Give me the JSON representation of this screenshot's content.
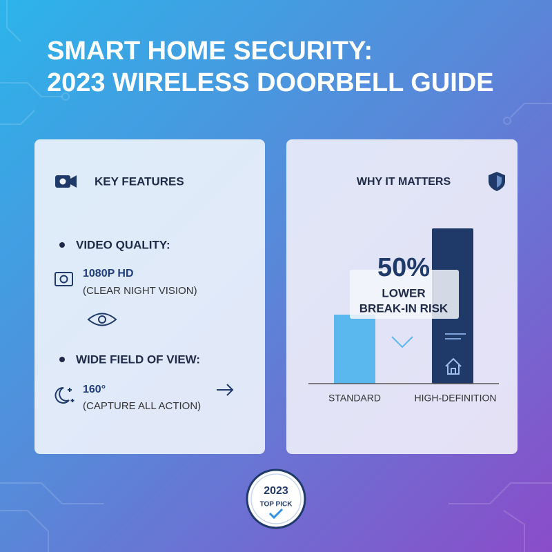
{
  "header": {
    "title_lines": [
      "SMART HOME SECURITY:",
      "2023 WIRELESS DOORBELL GUIDE"
    ]
  },
  "features": {
    "heading": "KEY FEATURES",
    "items": [
      {
        "label": "VIDEO QUALITY:",
        "value": "1080P HD",
        "note": "(CLEAR NIGHT VISION)"
      },
      {
        "label": "WIDE FIELD OF VIEW:",
        "value": "160°",
        "note": "(CAPTURE ALL ACTION)"
      }
    ]
  },
  "matters": {
    "heading": "WHY IT MATTERS",
    "stat": "50%",
    "stat_label_lines": [
      "LOWER",
      "BREAK-IN RISK"
    ],
    "categories": [
      "STANDARD",
      "HIGH-DEFINITION"
    ]
  },
  "badge": {
    "year": "2023",
    "label": "TOP PICK"
  }
}
